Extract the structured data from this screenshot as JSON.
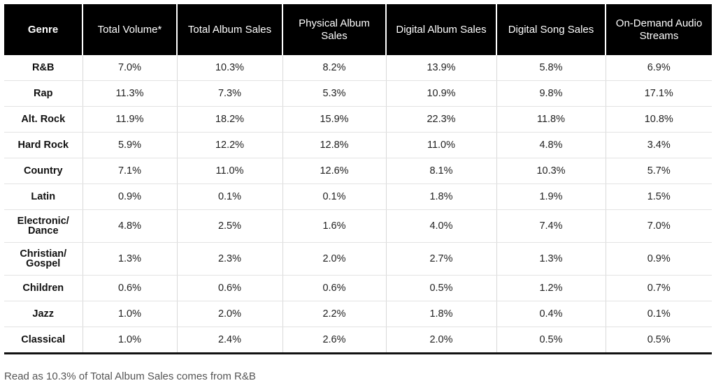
{
  "chart_data": {
    "type": "table",
    "columns": [
      "Genre",
      "Total Volume*",
      "Total Album Sales",
      "Physical Album Sales",
      "Digital Album Sales",
      "Digital Song Sales",
      "On-Demand Audio Streams"
    ],
    "rows": [
      {
        "genre": "R&B",
        "values": [
          "7.0%",
          "10.3%",
          "8.2%",
          "13.9%",
          "5.8%",
          "6.9%"
        ]
      },
      {
        "genre": "Rap",
        "values": [
          "11.3%",
          "7.3%",
          "5.3%",
          "10.9%",
          "9.8%",
          "17.1%"
        ]
      },
      {
        "genre": "Alt. Rock",
        "values": [
          "11.9%",
          "18.2%",
          "15.9%",
          "22.3%",
          "11.8%",
          "10.8%"
        ]
      },
      {
        "genre": "Hard Rock",
        "values": [
          "5.9%",
          "12.2%",
          "12.8%",
          "11.0%",
          "4.8%",
          "3.4%"
        ]
      },
      {
        "genre": "Country",
        "values": [
          "7.1%",
          "11.0%",
          "12.6%",
          "8.1%",
          "10.3%",
          "5.7%"
        ]
      },
      {
        "genre": "Latin",
        "values": [
          "0.9%",
          "0.1%",
          "0.1%",
          "1.8%",
          "1.9%",
          "1.5%"
        ]
      },
      {
        "genre": "Electronic/ Dance",
        "values": [
          "4.8%",
          "2.5%",
          "1.6%",
          "4.0%",
          "7.4%",
          "7.0%"
        ]
      },
      {
        "genre": "Christian/ Gospel",
        "values": [
          "1.3%",
          "2.3%",
          "2.0%",
          "2.7%",
          "1.3%",
          "0.9%"
        ]
      },
      {
        "genre": "Children",
        "values": [
          "0.6%",
          "0.6%",
          "0.6%",
          "0.5%",
          "1.2%",
          "0.7%"
        ]
      },
      {
        "genre": "Jazz",
        "values": [
          "1.0%",
          "2.0%",
          "2.2%",
          "1.8%",
          "0.4%",
          "0.1%"
        ]
      },
      {
        "genre": "Classical",
        "values": [
          "1.0%",
          "2.4%",
          "2.6%",
          "2.0%",
          "0.5%",
          "0.5%"
        ]
      }
    ]
  },
  "footnote": "Read as 10.3% of Total Album Sales comes from R&B",
  "colors": {
    "header_bg": "#000000",
    "header_text": "#ffffff",
    "grid": "#d9d9d9"
  }
}
